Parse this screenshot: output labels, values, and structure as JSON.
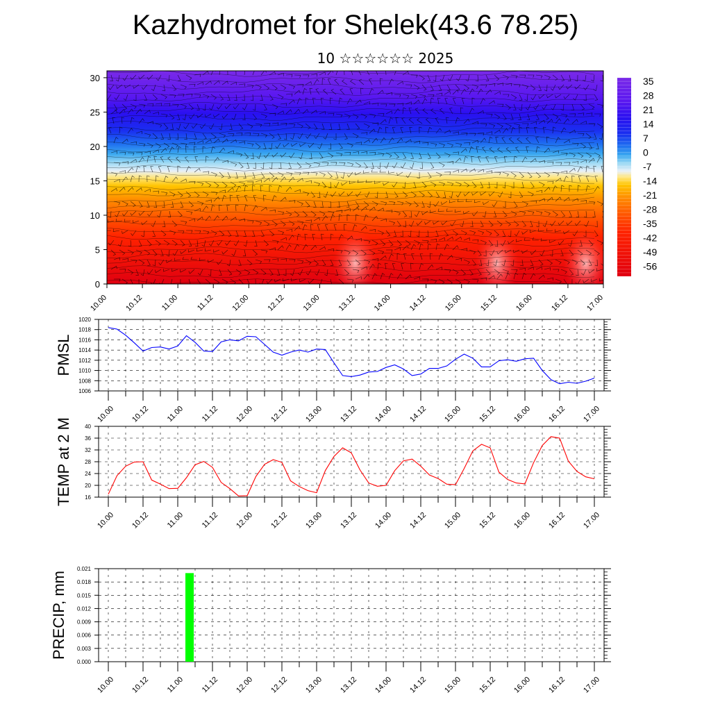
{
  "title": "Kazhydromet for Shelek(43.6 78.25)",
  "subtitle": "10 ☆☆☆☆☆☆ 2025",
  "colors": {
    "pmsl_line": "#0000ff",
    "temp_line": "#ff0000",
    "precip_bar": "#00ff00",
    "frame": "#000000"
  },
  "chart_data": [
    {
      "type": "heatmap",
      "name": "upper-air cross-section",
      "xlabel": "",
      "ylabel": "",
      "ylim": [
        0,
        31
      ],
      "yticks": [
        0,
        5,
        10,
        15,
        20,
        25,
        30
      ],
      "x_tick_labels": [
        "10.00",
        "10.12",
        "11.00",
        "11.12",
        "12.00",
        "12.12",
        "13.00",
        "13.12",
        "14.00",
        "14.12",
        "15.00",
        "15.12",
        "16.00",
        "16.12",
        "17.00"
      ],
      "colorbar_labels": [
        "35",
        "28",
        "21",
        "14",
        "7",
        "0",
        "-7",
        "-14",
        "-21",
        "-28",
        "-35",
        "-42",
        "-49",
        "-56"
      ],
      "colorbar_range": [
        -60,
        38
      ],
      "overlays": "wind barbs and isolines",
      "warm_cores_x": [
        7,
        11,
        13.5
      ]
    },
    {
      "type": "line",
      "name": "pmsl",
      "ylabel": "PMSL",
      "ylim": [
        1006,
        1020
      ],
      "yticks": [
        1006,
        1008,
        1010,
        1012,
        1014,
        1016,
        1018,
        1020
      ],
      "x_tick_labels": [
        "10.00",
        "10.12",
        "11.00",
        "11.12",
        "12.00",
        "12.12",
        "13.00",
        "13.12",
        "14.00",
        "14.12",
        "15.00",
        "15.12",
        "16.00",
        "16.12",
        "17.00"
      ],
      "x": [
        0.0,
        0.25,
        0.5,
        0.75,
        1.0,
        1.25,
        1.5,
        1.75,
        2.0,
        2.25,
        2.5,
        2.75,
        3.0,
        3.25,
        3.5,
        3.75,
        4.0,
        4.25,
        4.5,
        4.75,
        5.0,
        5.25,
        5.5,
        5.75,
        6.0,
        6.25,
        6.5,
        6.75,
        7.0,
        7.25,
        7.5,
        7.75,
        8.0,
        8.25,
        8.5,
        8.75,
        9.0,
        9.25,
        9.5,
        9.75,
        10.0,
        10.25,
        10.5,
        10.75,
        11.0,
        11.25,
        11.5,
        11.75,
        12.0,
        12.25,
        12.5,
        12.75,
        13.0,
        13.25,
        13.5,
        13.75,
        14.0
      ],
      "series": [
        {
          "values": [
            1018.4,
            1018.1,
            1016.9,
            1015.4,
            1013.8,
            1014.5,
            1014.6,
            1014.2,
            1014.8,
            1016.8,
            1015.5,
            1013.8,
            1013.7,
            1015.6,
            1016.0,
            1015.8,
            1016.7,
            1016.6,
            1015.1,
            1013.6,
            1013.0,
            1013.6,
            1014.0,
            1013.6,
            1014.2,
            1014.1,
            1011.5,
            1009.0,
            1008.8,
            1009.1,
            1009.7,
            1009.8,
            1010.6,
            1011.1,
            1010.3,
            1009.0,
            1009.3,
            1010.4,
            1010.4,
            1010.9,
            1012.2,
            1013.2,
            1012.4,
            1010.7,
            1010.7,
            1011.9,
            1012.1,
            1011.8,
            1012.3,
            1012.4,
            1010.0,
            1008.2,
            1007.4,
            1007.7,
            1007.5,
            1007.9,
            1008.5
          ]
        }
      ]
    },
    {
      "type": "line",
      "name": "temp2m",
      "ylabel": "TEMP at 2 M",
      "ylim": [
        16,
        40
      ],
      "yticks": [
        16,
        20,
        24,
        28,
        32,
        36,
        40
      ],
      "x_tick_labels": [
        "10.00",
        "10.12",
        "11.00",
        "11.12",
        "12.00",
        "12.12",
        "13.00",
        "13.12",
        "14.00",
        "14.12",
        "15.00",
        "15.12",
        "16.00",
        "16.12",
        "17.00"
      ],
      "x": [
        0.0,
        0.25,
        0.5,
        0.75,
        1.0,
        1.25,
        1.5,
        1.75,
        2.0,
        2.25,
        2.5,
        2.75,
        3.0,
        3.25,
        3.5,
        3.75,
        4.0,
        4.25,
        4.5,
        4.75,
        5.0,
        5.25,
        5.5,
        5.75,
        6.0,
        6.25,
        6.5,
        6.75,
        7.0,
        7.25,
        7.5,
        7.75,
        8.0,
        8.25,
        8.5,
        8.75,
        9.0,
        9.25,
        9.5,
        9.75,
        10.0,
        10.25,
        10.5,
        10.75,
        11.0,
        11.25,
        11.5,
        11.75,
        12.0,
        12.25,
        12.5,
        12.75,
        13.0,
        13.25,
        13.5,
        13.75,
        14.0
      ],
      "series": [
        {
          "values": [
            17.0,
            23.3,
            26.5,
            27.9,
            28.0,
            21.8,
            20.4,
            18.9,
            19.0,
            22.6,
            27.0,
            28.1,
            26.1,
            21.0,
            18.9,
            16.4,
            16.5,
            23.0,
            27.1,
            28.7,
            27.8,
            21.5,
            19.6,
            18.2,
            17.5,
            25.0,
            29.8,
            32.7,
            31.0,
            25.2,
            20.8,
            19.7,
            20.0,
            25.0,
            28.3,
            28.9,
            26.5,
            23.5,
            22.3,
            20.4,
            20.2,
            25.7,
            31.7,
            33.9,
            32.7,
            24.5,
            22.0,
            20.8,
            20.5,
            27.7,
            33.5,
            36.5,
            36.0,
            28.2,
            24.7,
            22.9,
            22.2
          ]
        }
      ]
    },
    {
      "type": "bar",
      "name": "precip",
      "ylabel": "PRECIP, mm",
      "ylim": [
        0,
        0.021
      ],
      "yticks": [
        "0.000",
        "0.003",
        "0.006",
        "0.009",
        "0.012",
        "0.015",
        "0.018",
        "0.021"
      ],
      "x_tick_labels": [
        "10.00",
        "10.12",
        "11.00",
        "11.12",
        "12.00",
        "12.12",
        "13.00",
        "13.12",
        "14.00",
        "14.12",
        "15.00",
        "15.12",
        "16.00",
        "16.12",
        "17.00"
      ],
      "bars": [
        {
          "x": 2.0,
          "value": 0.02
        }
      ]
    }
  ]
}
